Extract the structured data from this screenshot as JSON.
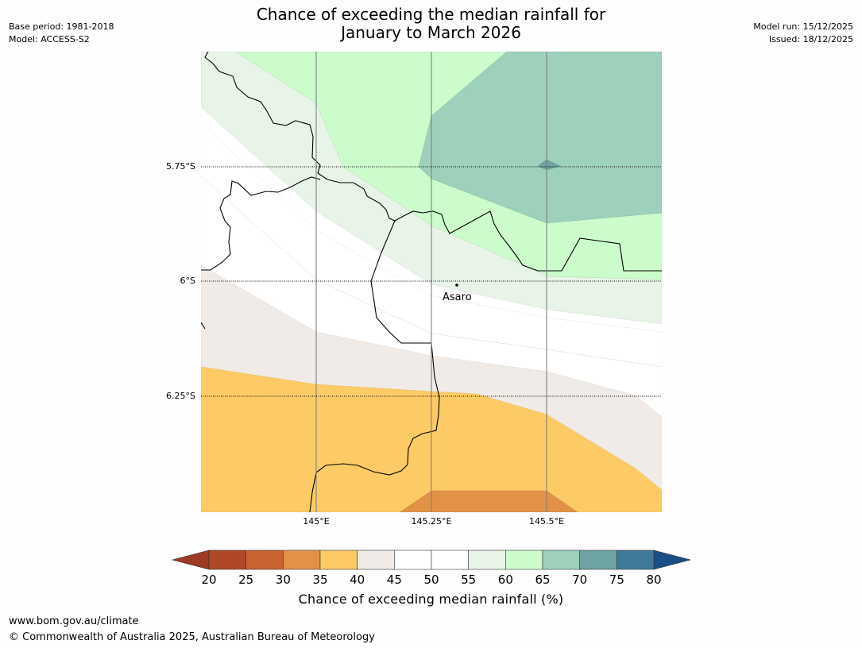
{
  "title": {
    "line1": "Chance of exceeding the median rainfall for",
    "line2": "January to March 2026"
  },
  "meta_left": {
    "base_period": "Base period: 1981-2018",
    "model": "Model: ACCESS-S2"
  },
  "meta_right": {
    "model_run": "Model run: 15/12/2025",
    "issued": "Issued: 18/12/2025"
  },
  "map": {
    "lat_labels": [
      "5.75°S",
      "6°S",
      "6.25°S"
    ],
    "lon_labels": [
      "145°E",
      "145.25°E",
      "145.5°E"
    ],
    "place": {
      "name": "Asaro"
    }
  },
  "colorbar": {
    "ticks": [
      "20",
      "25",
      "30",
      "35",
      "40",
      "45",
      "50",
      "55",
      "60",
      "65",
      "70",
      "75",
      "80"
    ],
    "colors": [
      "#b04826",
      "#cb6330",
      "#e19247",
      "#fdcb66",
      "#f0ebe6",
      "#ffffff",
      "#ffffff",
      "#e8f4e8",
      "#ccfccc",
      "#9dd1bb",
      "#6ea3a3",
      "#3f7a99"
    ],
    "under_color": "#9c3a24",
    "over_color": "#1a4e86",
    "title": "Chance of exceeding median rainfall (%)"
  },
  "footer": {
    "url": "www.bom.gov.au/climate",
    "copyright": "© Commonwealth of Australia 2025, Australian Bureau of Meteorology"
  }
}
